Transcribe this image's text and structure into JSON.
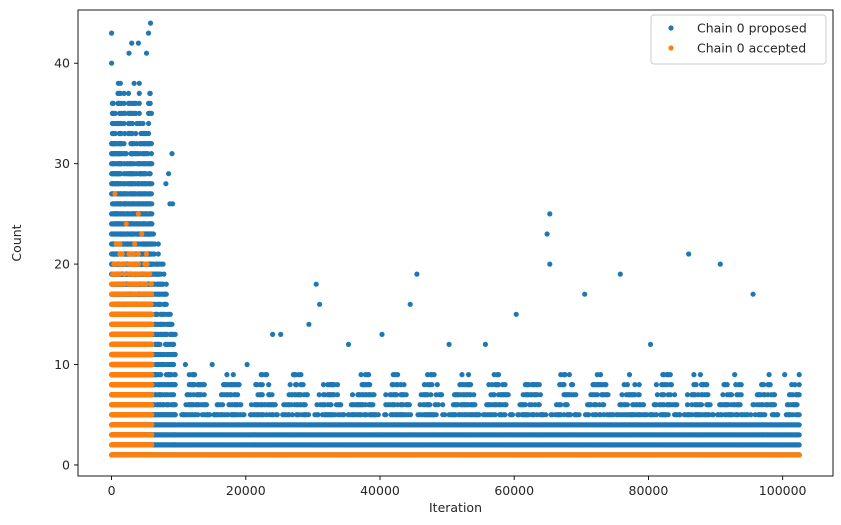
{
  "chart_data": {
    "type": "scatter",
    "xlabel": "Iteration",
    "ylabel": "Count",
    "xlim": [
      -5000,
      107500
    ],
    "ylim": [
      -1.1,
      45.3
    ],
    "x_ticks": [
      0,
      20000,
      40000,
      60000,
      80000,
      100000
    ],
    "x_tick_labels": [
      "0",
      "20000",
      "40000",
      "60000",
      "80000",
      "100000"
    ],
    "y_ticks": [
      0,
      10,
      20,
      30,
      40
    ],
    "y_tick_labels": [
      "0",
      "10",
      "20",
      "30",
      "40"
    ],
    "grid": false,
    "legend": {
      "position": "top-right",
      "entries": [
        {
          "label": "Chain 0 proposed",
          "color": "#1f77b4"
        },
        {
          "label": "Chain 0 accepted",
          "color": "#ff7f0e"
        }
      ]
    },
    "series": [
      {
        "name": "Chain 0 proposed",
        "color": "#1f77b4",
        "x_range": [
          0,
          102500
        ],
        "burn_in_end": 6000,
        "early_max": 44,
        "late_max": 9,
        "outliers": [
          {
            "x": 0,
            "y": 43
          },
          {
            "x": 0,
            "y": 40
          },
          {
            "x": 3000,
            "y": 42
          },
          {
            "x": 4000,
            "y": 42
          },
          {
            "x": 5500,
            "y": 43
          },
          {
            "x": 5800,
            "y": 44
          },
          {
            "x": 2600,
            "y": 41
          },
          {
            "x": 5200,
            "y": 41
          },
          {
            "x": 8500,
            "y": 29
          },
          {
            "x": 9000,
            "y": 31
          },
          {
            "x": 8100,
            "y": 28
          },
          {
            "x": 8700,
            "y": 26
          },
          {
            "x": 9100,
            "y": 26
          },
          {
            "x": 30500,
            "y": 18
          },
          {
            "x": 31000,
            "y": 16
          },
          {
            "x": 45500,
            "y": 19
          },
          {
            "x": 44500,
            "y": 16
          },
          {
            "x": 65300,
            "y": 25
          },
          {
            "x": 64900,
            "y": 23
          },
          {
            "x": 65300,
            "y": 20
          },
          {
            "x": 75800,
            "y": 19
          },
          {
            "x": 86000,
            "y": 21
          },
          {
            "x": 90700,
            "y": 20
          },
          {
            "x": 95600,
            "y": 17
          },
          {
            "x": 70500,
            "y": 17
          },
          {
            "x": 60300,
            "y": 15
          },
          {
            "x": 55700,
            "y": 12
          },
          {
            "x": 50300,
            "y": 12
          },
          {
            "x": 40300,
            "y": 13
          },
          {
            "x": 24000,
            "y": 13
          },
          {
            "x": 25200,
            "y": 13
          },
          {
            "x": 29400,
            "y": 14
          },
          {
            "x": 35300,
            "y": 12
          },
          {
            "x": 80300,
            "y": 12
          },
          {
            "x": 100300,
            "y": 9
          },
          {
            "x": 15000,
            "y": 10
          },
          {
            "x": 20200,
            "y": 10
          },
          {
            "x": 11000,
            "y": 10
          },
          {
            "x": 13000,
            "y": 8
          },
          {
            "x": 19000,
            "y": 8
          }
        ]
      },
      {
        "name": "Chain 0 accepted",
        "color": "#ff7f0e",
        "x_range": [
          0,
          102500
        ],
        "burn_in_end": 6000,
        "early_max": 22,
        "late_value": 1,
        "outliers": [
          {
            "x": 500,
            "y": 27
          },
          {
            "x": 4000,
            "y": 25
          },
          {
            "x": 2200,
            "y": 24
          },
          {
            "x": 4500,
            "y": 23
          },
          {
            "x": 1000,
            "y": 22
          },
          {
            "x": 3300,
            "y": 21
          },
          {
            "x": 5600,
            "y": 19
          },
          {
            "x": 2800,
            "y": 20
          }
        ]
      }
    ]
  }
}
